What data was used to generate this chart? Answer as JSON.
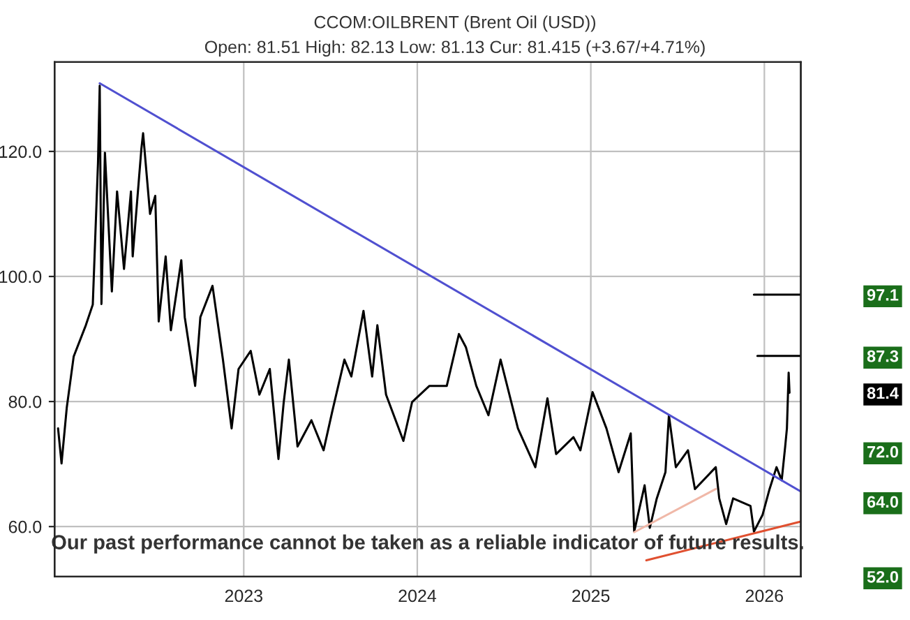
{
  "chart_data": {
    "type": "line",
    "title": "CCOM:OILBRENT (Brent Oil (USD))",
    "subtitle": "Open: 81.51 High: 82.13 Low: 81.13 Cur: 81.415 (+3.67/+4.71%)",
    "series": [
      {
        "color": "#000000",
        "x": [
          2021.93,
          2021.95,
          2021.98,
          2022.02,
          2022.09,
          2022.13,
          2022.16,
          2022.17,
          2022.18,
          2022.2,
          2022.24,
          2022.27,
          2022.31,
          2022.35,
          2022.36,
          2022.41,
          2022.42,
          2022.46,
          2022.49,
          2022.51,
          2022.55,
          2022.58,
          2022.64,
          2022.66,
          2022.72,
          2022.75,
          2022.82,
          2022.88,
          2022.93,
          2022.97,
          2023.04,
          2023.09,
          2023.15,
          2023.2,
          2023.23,
          2023.26,
          2023.31,
          2023.39,
          2023.46,
          2023.51,
          2023.58,
          2023.62,
          2023.69,
          2023.74,
          2023.77,
          2023.82,
          2023.92,
          2023.97,
          2024.07,
          2024.17,
          2024.24,
          2024.28,
          2024.34,
          2024.41,
          2024.48,
          2024.58,
          2024.68,
          2024.75,
          2024.8,
          2024.9,
          2024.94,
          2025.01,
          2025.09,
          2025.16,
          2025.23,
          2025.25,
          2025.31,
          2025.34,
          2025.38,
          2025.43,
          2025.45,
          2025.49,
          2025.56,
          2025.6,
          2025.72,
          2025.74,
          2025.78,
          2025.82,
          2025.92,
          2025.94,
          2025.99,
          2026.03,
          2026.07,
          2026.1,
          2026.12,
          2026.13,
          2026.14,
          2026.145
        ],
        "values": [
          75.7,
          70.1,
          79.0,
          87.2,
          92.2,
          95.5,
          118.1,
          130.5,
          95.6,
          119.8,
          97.6,
          113.6,
          101.2,
          113.6,
          103.2,
          120.4,
          122.9,
          110.0,
          112.9,
          92.8,
          103.2,
          91.4,
          102.6,
          93.5,
          82.5,
          93.5,
          98.5,
          86.7,
          75.7,
          85.2,
          88.1,
          81.1,
          85.2,
          70.8,
          79.8,
          86.7,
          72.8,
          77.0,
          72.2,
          78.4,
          86.7,
          84.0,
          94.5,
          84.0,
          92.2,
          81.1,
          73.7,
          79.9,
          82.5,
          82.5,
          90.8,
          88.7,
          82.5,
          77.8,
          86.7,
          75.7,
          69.5,
          80.5,
          71.6,
          74.3,
          72.2,
          81.5,
          75.7,
          68.7,
          74.9,
          59.2,
          66.6,
          59.8,
          64.5,
          68.7,
          77.8,
          69.5,
          72.2,
          66.0,
          69.5,
          64.5,
          60.4,
          64.5,
          63.3,
          59.2,
          61.9,
          66.0,
          69.5,
          67.4,
          72.8,
          75.7,
          84.6,
          81.4
        ]
      },
      {
        "color": "#5050d0",
        "x": [
          2022.17,
          2026.21
        ],
        "values": [
          130.9,
          65.6
        ]
      },
      {
        "color": "#f0b8a8",
        "x": [
          2025.25,
          2025.72
        ],
        "values": [
          59.1,
          66.0
        ]
      },
      {
        "color": "#e05030",
        "x": [
          2025.32,
          2026.21
        ],
        "values": [
          54.6,
          60.8
        ]
      },
      {
        "color": "#000000",
        "x": [
          2025.94,
          2026.21
        ],
        "values": [
          97.1,
          97.1
        ]
      },
      {
        "color": "#000000",
        "x": [
          2025.96,
          2026.21
        ],
        "values": [
          87.3,
          87.3
        ]
      }
    ],
    "xlim": [
      2021.91,
      2026.21
    ],
    "xticks": [
      2023,
      2024,
      2025,
      2026
    ],
    "ylim": [
      52,
      134.3
    ],
    "yticks": [
      {
        "value": 60,
        "label": "60.0"
      },
      {
        "value": 80,
        "label": "80.0"
      },
      {
        "value": 100,
        "label": "100.0"
      },
      {
        "value": 120,
        "label": "120.0"
      }
    ],
    "grid": true,
    "marker": "none",
    "line_style": "solid",
    "y2lim": [
      52,
      134.3
    ],
    "y2ticks": [
      {
        "value": 97.1,
        "label": "97.1"
      },
      {
        "value": 87.3,
        "label": "87.3"
      },
      {
        "value": 81.4,
        "label": "81.4"
      },
      {
        "value": 72.0,
        "label": "72.0"
      },
      {
        "value": 64.0,
        "label": "64.0"
      },
      {
        "value": 52.0,
        "label": "52.0"
      }
    ],
    "annotations": [
      "Our past performance cannot be taken as a reliable indicator of future results."
    ]
  }
}
